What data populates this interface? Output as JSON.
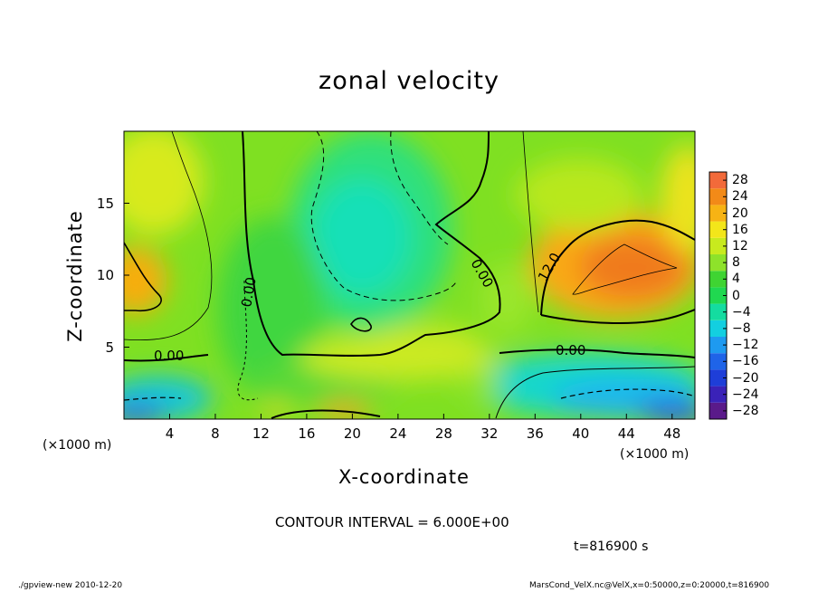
{
  "chart_data": {
    "type": "heatmap",
    "title": "zonal velocity",
    "xlabel": "X-coordinate",
    "ylabel": "Z-coordinate",
    "x_unit_label": "(×1000 m)",
    "x_ticks": [
      4,
      8,
      12,
      16,
      20,
      24,
      28,
      32,
      36,
      40,
      44,
      48
    ],
    "y_ticks": [
      5,
      10,
      15
    ],
    "xlim": [
      0,
      50
    ],
    "ylim": [
      0,
      20
    ],
    "colorbar_ticks": [
      28,
      24,
      20,
      16,
      12,
      8,
      4,
      0,
      -4,
      -8,
      -12,
      -16,
      -20,
      -24,
      -28
    ],
    "colorbar_range": [
      -30,
      30
    ],
    "contour_labels": [
      "0.00",
      "0.00",
      "0.00",
      "0.00",
      "12.0"
    ],
    "contour_interval_text": "CONTOUR INTERVAL = 6.000E+00",
    "time_text": "t=816900 s",
    "features": [
      {
        "x": 3,
        "z": 17,
        "value": 10
      },
      {
        "x": 1,
        "z": 9.5,
        "value": 16
      },
      {
        "x": 21,
        "z": 13,
        "value": -10
      },
      {
        "x": 44,
        "z": 10.5,
        "value": 19
      },
      {
        "x": 43,
        "z": 1.5,
        "value": -12
      },
      {
        "x": 1.5,
        "z": 0.4,
        "value": -15
      },
      {
        "x": 21,
        "z": 0.3,
        "value": 15
      },
      {
        "x": 30,
        "z": 3.5,
        "value": 3
      }
    ]
  },
  "footer": {
    "left": "./gpview-new  2010-12-20",
    "right": "MarsCond_VelX.nc@VelX,x=0:50000,z=0:20000,t=816900"
  }
}
